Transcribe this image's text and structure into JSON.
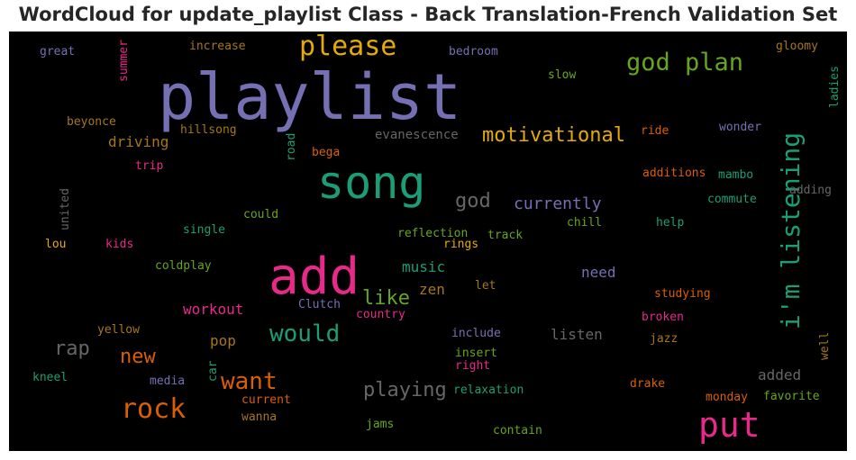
{
  "chart_data": {
    "type": "wordcloud",
    "title": "WordCloud for update_playlist Class - Back Translation-French Validation Set",
    "background": "#000000",
    "palette": {
      "purple": "#7570b3",
      "teal": "#1b9e77",
      "pink": "#e7298a",
      "gold": "#e6ab02",
      "green": "#66a61e",
      "orange": "#d95f02",
      "brown": "#a6761d",
      "gray": "#666666"
    },
    "words": [
      {
        "text": "playlist",
        "color": "purple"
      },
      {
        "text": "add",
        "color": "pink"
      },
      {
        "text": "song",
        "color": "teal"
      },
      {
        "text": "put",
        "color": "pink"
      },
      {
        "text": "i'm listening",
        "color": "teal"
      },
      {
        "text": "god plan",
        "color": "green"
      },
      {
        "text": "please",
        "color": "gold"
      },
      {
        "text": "rock",
        "color": "orange"
      },
      {
        "text": "would",
        "color": "teal"
      },
      {
        "text": "motivational",
        "color": "gold"
      },
      {
        "text": "want",
        "color": "orange"
      },
      {
        "text": "playing",
        "color": "gray"
      },
      {
        "text": "god",
        "color": "gray"
      },
      {
        "text": "like",
        "color": "green"
      },
      {
        "text": "rap",
        "color": "gray"
      },
      {
        "text": "new",
        "color": "orange"
      },
      {
        "text": "currently",
        "color": "purple"
      },
      {
        "text": "driving",
        "color": "brown"
      },
      {
        "text": "music",
        "color": "teal"
      },
      {
        "text": "need",
        "color": "purple"
      },
      {
        "text": "workout",
        "color": "pink"
      },
      {
        "text": "listen",
        "color": "gray"
      },
      {
        "text": "zen",
        "color": "brown"
      },
      {
        "text": "pop",
        "color": "brown"
      },
      {
        "text": "added",
        "color": "gray"
      },
      {
        "text": "evanescence",
        "color": "gray"
      },
      {
        "text": "reflection",
        "color": "green"
      },
      {
        "text": "great",
        "color": "purple"
      },
      {
        "text": "increase",
        "color": "brown"
      },
      {
        "text": "bedroom",
        "color": "purple"
      },
      {
        "text": "slow",
        "color": "green"
      },
      {
        "text": "gloomy",
        "color": "brown"
      },
      {
        "text": "summer",
        "color": "pink"
      },
      {
        "text": "ladies",
        "color": "teal"
      },
      {
        "text": "beyonce",
        "color": "brown"
      },
      {
        "text": "hillsong",
        "color": "brown"
      },
      {
        "text": "wonder",
        "color": "purple"
      },
      {
        "text": "ride",
        "color": "orange"
      },
      {
        "text": "road",
        "color": "teal"
      },
      {
        "text": "bega",
        "color": "orange"
      },
      {
        "text": "trip",
        "color": "pink"
      },
      {
        "text": "additions",
        "color": "orange"
      },
      {
        "text": "mambo",
        "color": "teal"
      },
      {
        "text": "adding",
        "color": "gray"
      },
      {
        "text": "commute",
        "color": "teal"
      },
      {
        "text": "united",
        "color": "gray"
      },
      {
        "text": "could",
        "color": "green"
      },
      {
        "text": "chill",
        "color": "green"
      },
      {
        "text": "help",
        "color": "teal"
      },
      {
        "text": "single",
        "color": "teal"
      },
      {
        "text": "track",
        "color": "green"
      },
      {
        "text": "lou",
        "color": "gold"
      },
      {
        "text": "kids",
        "color": "pink"
      },
      {
        "text": "rings",
        "color": "gold"
      },
      {
        "text": "coldplay",
        "color": "green"
      },
      {
        "text": "let",
        "color": "brown"
      },
      {
        "text": "studying",
        "color": "orange"
      },
      {
        "text": "Clutch",
        "color": "purple"
      },
      {
        "text": "country",
        "color": "pink"
      },
      {
        "text": "broken",
        "color": "pink"
      },
      {
        "text": "yellow",
        "color": "brown"
      },
      {
        "text": "include",
        "color": "purple"
      },
      {
        "text": "jazz",
        "color": "brown"
      },
      {
        "text": "well",
        "color": "brown"
      },
      {
        "text": "insert",
        "color": "green"
      },
      {
        "text": "right",
        "color": "pink"
      },
      {
        "text": "kneel",
        "color": "teal"
      },
      {
        "text": "media",
        "color": "purple"
      },
      {
        "text": "car",
        "color": "teal"
      },
      {
        "text": "relaxation",
        "color": "teal"
      },
      {
        "text": "drake",
        "color": "orange"
      },
      {
        "text": "current",
        "color": "orange"
      },
      {
        "text": "monday",
        "color": "orange"
      },
      {
        "text": "favorite",
        "color": "green"
      },
      {
        "text": "wanna",
        "color": "brown"
      },
      {
        "text": "jams",
        "color": "green"
      },
      {
        "text": "contain",
        "color": "green"
      }
    ]
  }
}
